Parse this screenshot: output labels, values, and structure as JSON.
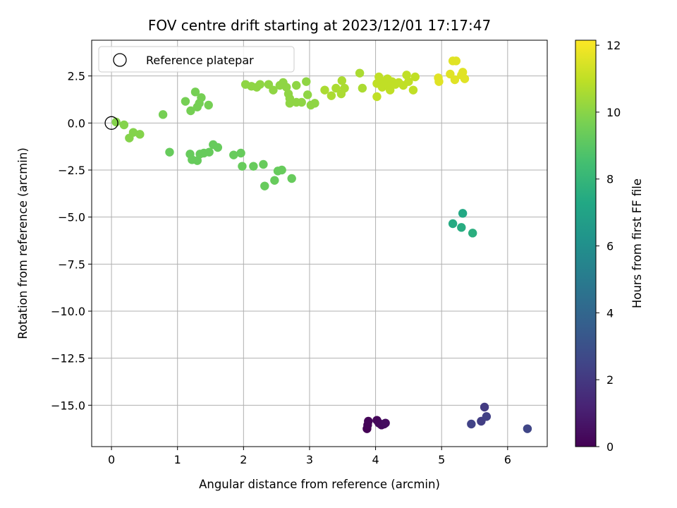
{
  "chart_data": {
    "type": "scatter",
    "title": "FOV centre drift starting at 2023/12/01 17:17:47",
    "xlabel": "Angular distance from reference (arcmin)",
    "ylabel": "Rotation from reference (arcmin)",
    "xlim": [
      -0.3,
      6.6
    ],
    "ylim": [
      -17.2,
      4.4
    ],
    "xticks": [
      0,
      1,
      2,
      3,
      4,
      5,
      6
    ],
    "yticks": [
      2.5,
      0.0,
      -2.5,
      -5.0,
      -7.5,
      -10.0,
      -12.5,
      -15.0
    ],
    "grid": true,
    "legend": {
      "location": "upper-left",
      "entries": [
        "Reference platepar"
      ]
    },
    "reference_point": {
      "x": 0,
      "y": 0
    },
    "colorbar": {
      "label": "Hours from first FF file",
      "colormap": "viridis",
      "range": [
        0,
        12.15
      ],
      "ticks": [
        0,
        2,
        4,
        6,
        8,
        10,
        12
      ]
    },
    "points": [
      {
        "x": 3.87,
        "y": -16.25,
        "h": 0.05
      },
      {
        "x": 3.88,
        "y": -16.05,
        "h": 0.1
      },
      {
        "x": 3.89,
        "y": -15.85,
        "h": 0.15
      },
      {
        "x": 4.02,
        "y": -15.8,
        "h": 0.2
      },
      {
        "x": 4.05,
        "y": -15.95,
        "h": 0.25
      },
      {
        "x": 4.09,
        "y": -16.05,
        "h": 0.3
      },
      {
        "x": 4.13,
        "y": -16.0,
        "h": 0.35
      },
      {
        "x": 4.15,
        "y": -15.95,
        "h": 0.4
      },
      {
        "x": 5.65,
        "y": -15.1,
        "h": 2.1
      },
      {
        "x": 5.6,
        "y": -15.85,
        "h": 2.2
      },
      {
        "x": 5.68,
        "y": -15.6,
        "h": 2.3
      },
      {
        "x": 5.45,
        "y": -16.0,
        "h": 2.4
      },
      {
        "x": 6.3,
        "y": -16.25,
        "h": 2.5
      },
      {
        "x": 5.32,
        "y": -4.8,
        "h": 7.3
      },
      {
        "x": 5.17,
        "y": -5.35,
        "h": 7.4
      },
      {
        "x": 5.3,
        "y": -5.55,
        "h": 7.5
      },
      {
        "x": 5.47,
        "y": -5.85,
        "h": 7.6
      },
      {
        "x": 0.88,
        "y": -1.55,
        "h": 9.3
      },
      {
        "x": 1.19,
        "y": -1.65,
        "h": 9.3
      },
      {
        "x": 1.22,
        "y": -1.95,
        "h": 9.3
      },
      {
        "x": 1.3,
        "y": -2.0,
        "h": 9.3
      },
      {
        "x": 1.34,
        "y": -1.65,
        "h": 9.3
      },
      {
        "x": 1.4,
        "y": -1.6,
        "h": 9.3
      },
      {
        "x": 1.48,
        "y": -1.55,
        "h": 9.3
      },
      {
        "x": 1.54,
        "y": -1.15,
        "h": 9.3
      },
      {
        "x": 1.61,
        "y": -1.3,
        "h": 9.3
      },
      {
        "x": 1.85,
        "y": -1.7,
        "h": 9.3
      },
      {
        "x": 1.96,
        "y": -1.6,
        "h": 9.3
      },
      {
        "x": 1.98,
        "y": -2.3,
        "h": 9.3
      },
      {
        "x": 2.15,
        "y": -2.3,
        "h": 9.3
      },
      {
        "x": 2.3,
        "y": -2.2,
        "h": 9.3
      },
      {
        "x": 2.32,
        "y": -3.35,
        "h": 9.3
      },
      {
        "x": 2.47,
        "y": -3.05,
        "h": 9.3
      },
      {
        "x": 2.52,
        "y": -2.55,
        "h": 9.3
      },
      {
        "x": 2.58,
        "y": -2.5,
        "h": 9.3
      },
      {
        "x": 2.73,
        "y": -2.95,
        "h": 9.3
      },
      {
        "x": 0.78,
        "y": 0.45,
        "h": 9.6
      },
      {
        "x": 1.12,
        "y": 1.15,
        "h": 9.6
      },
      {
        "x": 1.2,
        "y": 0.65,
        "h": 9.6
      },
      {
        "x": 1.27,
        "y": 1.65,
        "h": 9.6
      },
      {
        "x": 1.3,
        "y": 0.85,
        "h": 9.6
      },
      {
        "x": 1.33,
        "y": 1.05,
        "h": 9.6
      },
      {
        "x": 1.36,
        "y": 1.35,
        "h": 9.6
      },
      {
        "x": 1.47,
        "y": 0.95,
        "h": 9.6
      },
      {
        "x": 0.07,
        "y": 0.05,
        "h": 9.9
      },
      {
        "x": 0.19,
        "y": -0.1,
        "h": 9.9
      },
      {
        "x": 0.27,
        "y": -0.8,
        "h": 9.9
      },
      {
        "x": 0.33,
        "y": -0.5,
        "h": 9.9
      },
      {
        "x": 0.43,
        "y": -0.6,
        "h": 9.9
      },
      {
        "x": 2.03,
        "y": 2.05,
        "h": 10.1
      },
      {
        "x": 2.12,
        "y": 1.95,
        "h": 10.1
      },
      {
        "x": 2.2,
        "y": 1.9,
        "h": 10.1
      },
      {
        "x": 2.25,
        "y": 2.05,
        "h": 10.1
      },
      {
        "x": 2.38,
        "y": 2.05,
        "h": 10.1
      },
      {
        "x": 2.45,
        "y": 1.75,
        "h": 10.1
      },
      {
        "x": 2.55,
        "y": 2.0,
        "h": 10.1
      },
      {
        "x": 2.6,
        "y": 2.15,
        "h": 10.1
      },
      {
        "x": 2.65,
        "y": 1.9,
        "h": 10.1
      },
      {
        "x": 2.68,
        "y": 1.55,
        "h": 10.1
      },
      {
        "x": 2.7,
        "y": 1.3,
        "h": 10.1
      },
      {
        "x": 2.7,
        "y": 1.05,
        "h": 10.1
      },
      {
        "x": 2.8,
        "y": 2.0,
        "h": 10.1
      },
      {
        "x": 2.8,
        "y": 1.1,
        "h": 10.1
      },
      {
        "x": 2.88,
        "y": 1.1,
        "h": 10.1
      },
      {
        "x": 2.95,
        "y": 2.2,
        "h": 10.1
      },
      {
        "x": 2.97,
        "y": 1.5,
        "h": 10.1
      },
      {
        "x": 3.02,
        "y": 0.95,
        "h": 10.1
      },
      {
        "x": 3.08,
        "y": 1.05,
        "h": 10.1
      },
      {
        "x": 3.23,
        "y": 1.75,
        "h": 10.6
      },
      {
        "x": 3.33,
        "y": 1.45,
        "h": 10.6
      },
      {
        "x": 3.4,
        "y": 1.85,
        "h": 10.6
      },
      {
        "x": 3.48,
        "y": 1.55,
        "h": 10.6
      },
      {
        "x": 3.49,
        "y": 2.25,
        "h": 10.6
      },
      {
        "x": 3.53,
        "y": 1.85,
        "h": 10.6
      },
      {
        "x": 3.76,
        "y": 2.65,
        "h": 10.6
      },
      {
        "x": 3.8,
        "y": 1.85,
        "h": 10.6
      },
      {
        "x": 4.02,
        "y": 1.4,
        "h": 11.0
      },
      {
        "x": 4.02,
        "y": 2.1,
        "h": 11.0
      },
      {
        "x": 4.05,
        "y": 2.45,
        "h": 11.0
      },
      {
        "x": 4.08,
        "y": 2.25,
        "h": 11.0
      },
      {
        "x": 4.1,
        "y": 1.9,
        "h": 11.0
      },
      {
        "x": 4.14,
        "y": 2.05,
        "h": 11.0
      },
      {
        "x": 4.18,
        "y": 2.35,
        "h": 11.0
      },
      {
        "x": 4.2,
        "y": 1.95,
        "h": 11.0
      },
      {
        "x": 4.22,
        "y": 1.75,
        "h": 11.0
      },
      {
        "x": 4.25,
        "y": 2.2,
        "h": 11.0
      },
      {
        "x": 4.3,
        "y": 2.05,
        "h": 11.0
      },
      {
        "x": 4.35,
        "y": 2.15,
        "h": 11.0
      },
      {
        "x": 4.42,
        "y": 2.0,
        "h": 11.0
      },
      {
        "x": 4.47,
        "y": 2.55,
        "h": 11.0
      },
      {
        "x": 4.5,
        "y": 2.2,
        "h": 11.0
      },
      {
        "x": 4.57,
        "y": 1.75,
        "h": 11.0
      },
      {
        "x": 4.6,
        "y": 2.45,
        "h": 11.0
      },
      {
        "x": 4.95,
        "y": 2.4,
        "h": 11.6
      },
      {
        "x": 4.96,
        "y": 2.2,
        "h": 11.6
      },
      {
        "x": 5.13,
        "y": 2.6,
        "h": 11.6
      },
      {
        "x": 5.17,
        "y": 3.3,
        "h": 11.6
      },
      {
        "x": 5.22,
        "y": 3.3,
        "h": 11.6
      },
      {
        "x": 5.2,
        "y": 2.3,
        "h": 11.6
      },
      {
        "x": 5.3,
        "y": 2.55,
        "h": 11.6
      },
      {
        "x": 5.32,
        "y": 2.7,
        "h": 11.6
      },
      {
        "x": 5.35,
        "y": 2.35,
        "h": 11.6
      }
    ]
  }
}
